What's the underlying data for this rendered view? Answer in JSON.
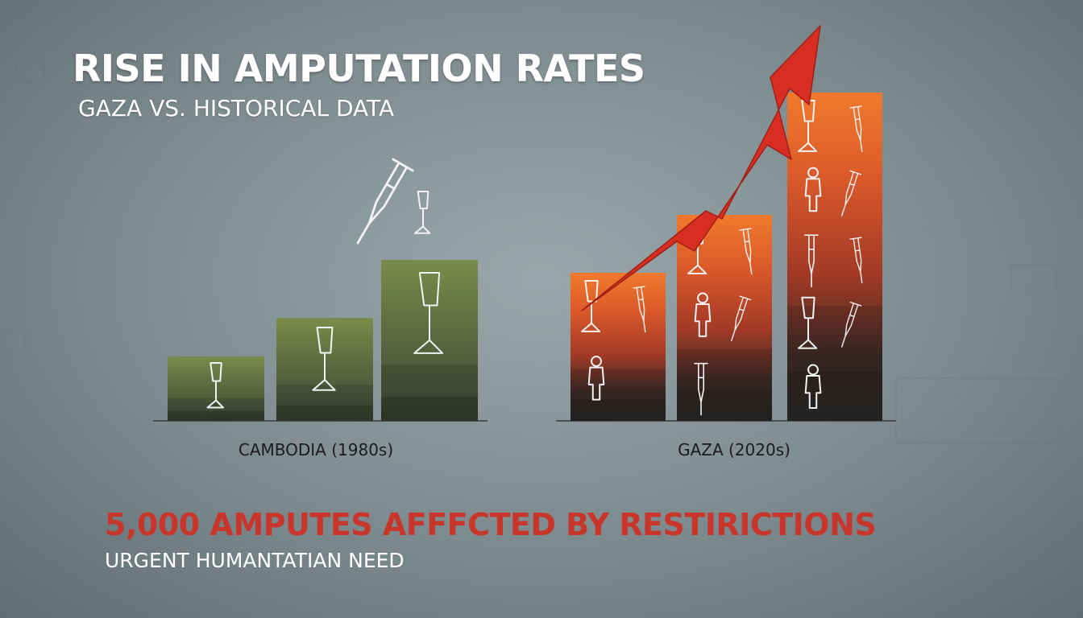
{
  "title": "RISE IN AMPUTATION RATES",
  "subtitle": "GAZA VS. HISTORICAL DATA",
  "headline": "5,000 AMPUTES AFFFCTED BY RESTIRICTIONS",
  "subheadline": "URGENT HUMANTATIAN NEED",
  "colors": {
    "cambodia_bar_top": "#7a8c4a",
    "cambodia_bar_base": "#3e4636",
    "gaza_bar_top": "#f07a2c",
    "gaza_bar_mid": "#a33a26",
    "gaza_bar_base": "#2f2f2f",
    "trend_arrow": "#d82e22",
    "headline": "#c8352a"
  },
  "icons": [
    "prosthetic-leg-icon",
    "crutch-icon",
    "child-figure-icon",
    "rising-arrow-icon"
  ],
  "chart_data": {
    "type": "bar",
    "title": "RISE IN AMPUTATION RATES",
    "subtitle": "GAZA VS. HISTORICAL DATA",
    "xlabel": "",
    "ylabel": "",
    "axis_values_shown": false,
    "trend_arrow": true,
    "groups": [
      {
        "label": "CAMBODIA (1980s)",
        "values": [
          1.0,
          1.6,
          2.5
        ]
      },
      {
        "label": "GAZA (2020s)",
        "values": [
          2.3,
          3.2,
          5.1
        ]
      }
    ]
  }
}
